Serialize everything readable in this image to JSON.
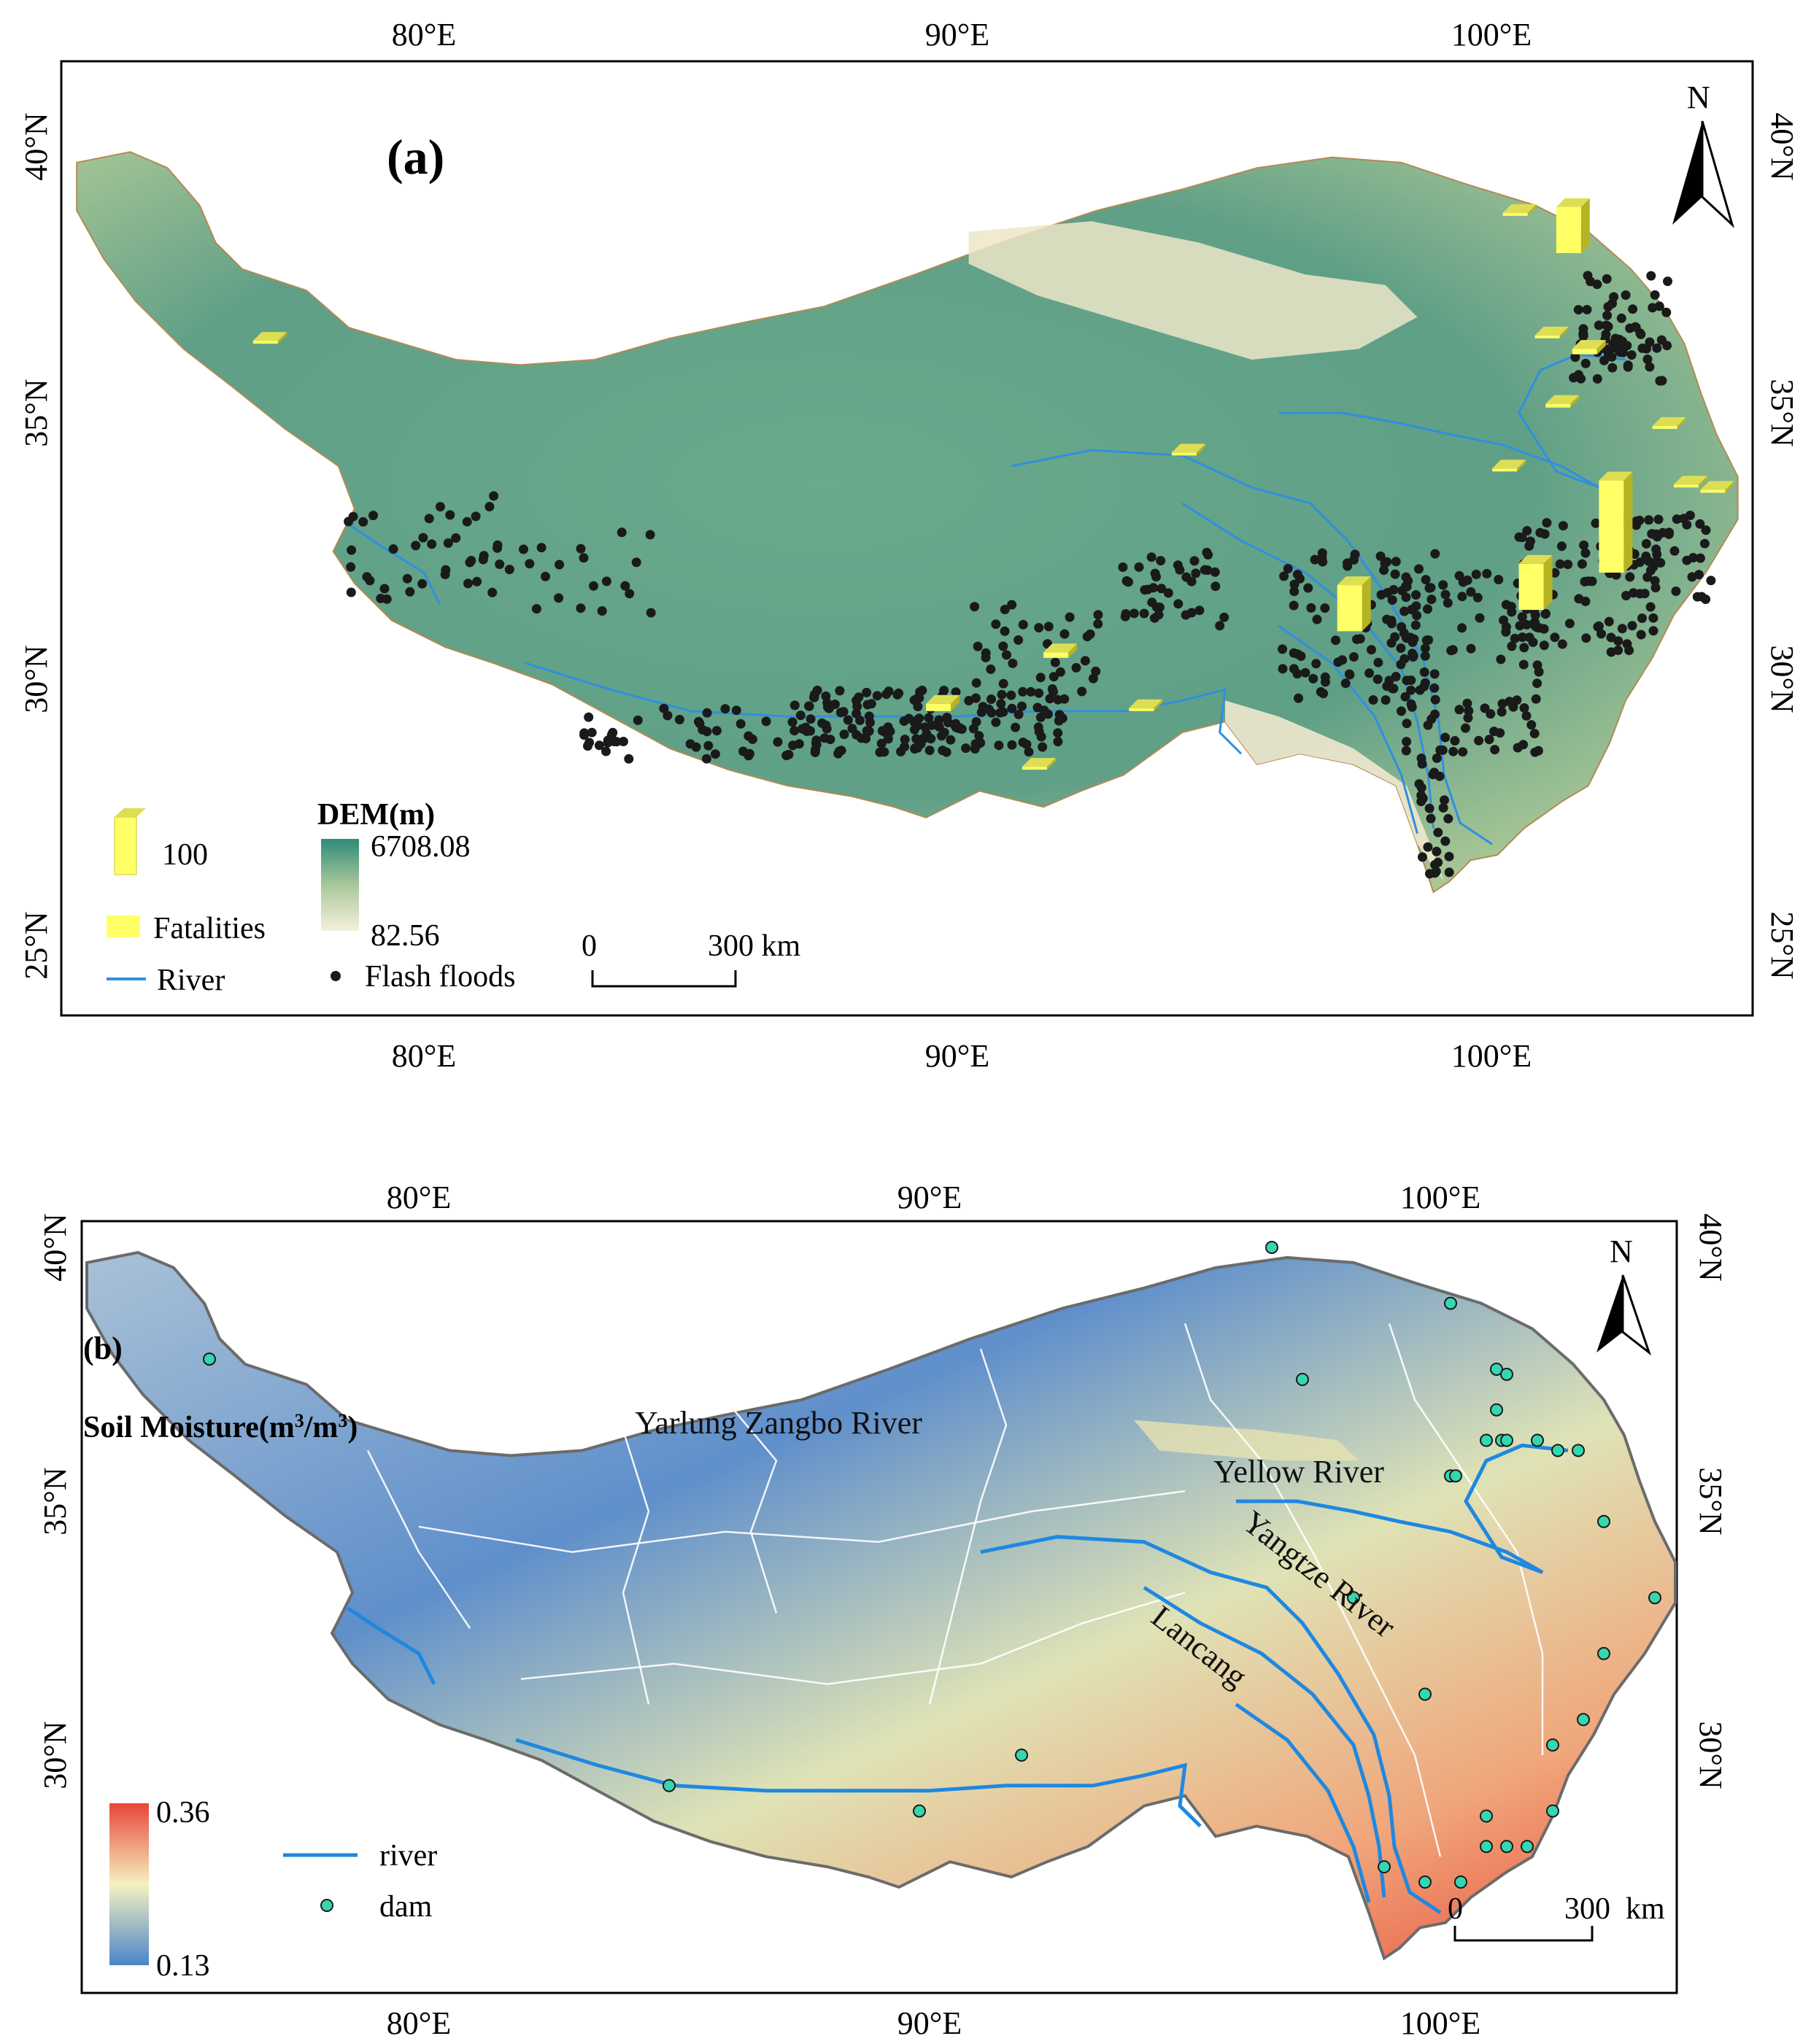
{
  "ticks": {
    "lon": [
      "80°E",
      "90°E",
      "100°E"
    ],
    "lat": [
      "40°N",
      "35°N",
      "30°N",
      "25°N"
    ]
  },
  "panel_a": {
    "label": "(a)",
    "north": "N",
    "legend": {
      "bar_value": "100",
      "fatalities": "Fatalities",
      "river": "River",
      "dem_title": "DEM(m)",
      "dem_max": "6708.08",
      "dem_min": "82.56",
      "flash_floods": "Flash floods"
    },
    "scale": {
      "zero": "0",
      "end": "300 km"
    },
    "colors": {
      "dem_high": "#2e8b78",
      "dem_mid": "#c9d8a8",
      "dem_low": "#f5f0dc",
      "bar": "#ffff66",
      "bar_shade": "#b5b522",
      "river": "#2f8fe0",
      "dot": "#1a1a1a"
    },
    "fatality_bars": [
      {
        "lon": 101.2,
        "lat": 38.0,
        "value": 50
      },
      {
        "lon": 102.0,
        "lat": 32.0,
        "value": 100
      },
      {
        "lon": 100.5,
        "lat": 31.3,
        "value": 50
      },
      {
        "lon": 97.1,
        "lat": 30.9,
        "value": 50
      },
      {
        "lon": 89.4,
        "lat": 29.4,
        "value": 8
      },
      {
        "lon": 91.6,
        "lat": 30.4,
        "value": 6
      },
      {
        "lon": 93.2,
        "lat": 29.4,
        "value": 3
      },
      {
        "lon": 91.2,
        "lat": 28.3,
        "value": 3
      },
      {
        "lon": 101.5,
        "lat": 36.1,
        "value": 6
      },
      {
        "lon": 101.0,
        "lat": 35.1,
        "value": 4
      },
      {
        "lon": 103.4,
        "lat": 33.6,
        "value": 3
      },
      {
        "lon": 103.9,
        "lat": 33.5,
        "value": 3
      },
      {
        "lon": 100.8,
        "lat": 36.4,
        "value": 3
      },
      {
        "lon": 94.0,
        "lat": 34.2,
        "value": 2
      },
      {
        "lon": 100.2,
        "lat": 38.7,
        "value": 2
      },
      {
        "lon": 103.0,
        "lat": 34.7,
        "value": 2
      },
      {
        "lon": 76.8,
        "lat": 36.3,
        "value": 2
      },
      {
        "lon": 100.0,
        "lat": 33.9,
        "value": 2
      }
    ]
  },
  "panel_b": {
    "label": "(b)",
    "north": "N",
    "legend": {
      "sm_title": "Soil Moisture(m",
      "sm_sup": "3",
      "sm_mid": "/m",
      "sm_close": ")",
      "sm_max": "0.36",
      "sm_min": "0.13",
      "river": "river",
      "dam": "dam"
    },
    "river_labels": {
      "yellow": "Yellow River",
      "yangtze": "Yangtze River",
      "lancang": "Lancang",
      "yarlung": "Yarlung Zangbo River"
    },
    "scale": {
      "zero": "0",
      "end": "300",
      "unit": "km"
    },
    "colors": {
      "sm_high": "#e8463a",
      "sm_mid": "#f5f1c0",
      "sm_low": "#4a85c8",
      "river": "#1f88e0",
      "dam": "#36d6b0",
      "boundary": "#ffffff"
    },
    "dams": [
      {
        "lon": 96.7,
        "lat": 40.0
      },
      {
        "lon": 100.2,
        "lat": 38.9
      },
      {
        "lon": 75.9,
        "lat": 37.8
      },
      {
        "lon": 101.1,
        "lat": 37.6
      },
      {
        "lon": 101.3,
        "lat": 37.5
      },
      {
        "lon": 97.3,
        "lat": 37.4
      },
      {
        "lon": 101.1,
        "lat": 36.8
      },
      {
        "lon": 100.9,
        "lat": 36.2
      },
      {
        "lon": 101.2,
        "lat": 36.2
      },
      {
        "lon": 101.3,
        "lat": 36.2
      },
      {
        "lon": 101.9,
        "lat": 36.2
      },
      {
        "lon": 102.3,
        "lat": 36.0
      },
      {
        "lon": 102.7,
        "lat": 36.0
      },
      {
        "lon": 100.2,
        "lat": 35.5
      },
      {
        "lon": 100.3,
        "lat": 35.5
      },
      {
        "lon": 103.2,
        "lat": 34.6
      },
      {
        "lon": 104.2,
        "lat": 33.1
      },
      {
        "lon": 98.3,
        "lat": 33.1
      },
      {
        "lon": 103.2,
        "lat": 32.0
      },
      {
        "lon": 99.7,
        "lat": 31.2
      },
      {
        "lon": 102.8,
        "lat": 30.7
      },
      {
        "lon": 91.8,
        "lat": 30.0
      },
      {
        "lon": 102.2,
        "lat": 30.2
      },
      {
        "lon": 84.9,
        "lat": 29.4
      },
      {
        "lon": 89.8,
        "lat": 28.9
      },
      {
        "lon": 102.2,
        "lat": 28.9
      },
      {
        "lon": 100.9,
        "lat": 28.8
      },
      {
        "lon": 100.9,
        "lat": 28.2
      },
      {
        "lon": 101.3,
        "lat": 28.2
      },
      {
        "lon": 101.7,
        "lat": 28.2
      },
      {
        "lon": 98.9,
        "lat": 27.8
      },
      {
        "lon": 99.7,
        "lat": 27.5
      },
      {
        "lon": 100.4,
        "lat": 27.5
      }
    ]
  }
}
